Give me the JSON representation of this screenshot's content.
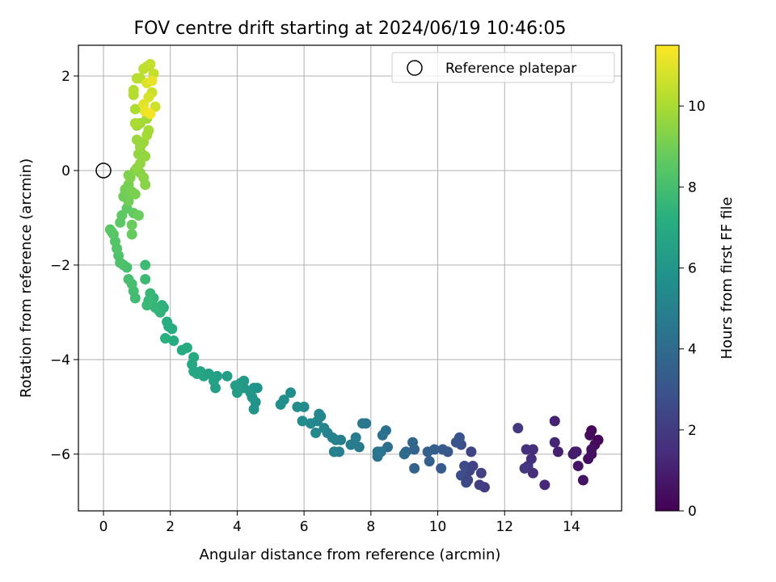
{
  "chart_data": {
    "type": "scatter",
    "title": "FOV centre drift starting at 2024/06/19 10:46:05",
    "xlabel": "Angular distance from reference (arcmin)",
    "ylabel": "Rotation from reference (arcmin)",
    "xlim": [
      -0.75,
      15.5
    ],
    "ylim": [
      -7.2,
      2.65
    ],
    "xticks": [
      0,
      2,
      4,
      6,
      8,
      10,
      12,
      14
    ],
    "yticks": [
      -6,
      -4,
      -2,
      0,
      2
    ],
    "grid": true,
    "legend": {
      "position": "top-right",
      "entries": [
        {
          "label": "Reference platepar",
          "marker": "open-circle"
        }
      ]
    },
    "reference_point": {
      "x": 0,
      "y": 0
    },
    "colorbar": {
      "label": "Hours from first FF file",
      "colormap": "viridis",
      "range": [
        0,
        11.5
      ],
      "ticks": [
        0,
        2,
        4,
        6,
        8,
        10
      ]
    },
    "points": [
      [
        14.8,
        -5.7,
        0.1
      ],
      [
        14.6,
        -5.5,
        0.2
      ],
      [
        14.7,
        -5.8,
        0.3
      ],
      [
        14.55,
        -5.6,
        0.35
      ],
      [
        14.5,
        -6.1,
        0.4
      ],
      [
        14.6,
        -6.0,
        0.5
      ],
      [
        14.35,
        -6.55,
        0.6
      ],
      [
        14.2,
        -6.25,
        0.7
      ],
      [
        14.1,
        -5.95,
        0.8
      ],
      [
        14.05,
        -6.0,
        0.85
      ],
      [
        14.15,
        -5.95,
        0.9
      ],
      [
        14.6,
        -5.9,
        0.5
      ],
      [
        13.6,
        -5.95,
        1.0
      ],
      [
        13.5,
        -5.3,
        1.1
      ],
      [
        13.5,
        -5.75,
        1.2
      ],
      [
        13.2,
        -6.65,
        1.3
      ],
      [
        12.85,
        -6.4,
        1.4
      ],
      [
        12.85,
        -5.9,
        1.5
      ],
      [
        12.65,
        -5.9,
        1.6
      ],
      [
        12.7,
        -6.25,
        1.7
      ],
      [
        12.6,
        -6.3,
        1.8
      ],
      [
        12.4,
        -5.45,
        1.85
      ],
      [
        12.8,
        -6.1,
        1.5
      ],
      [
        11.4,
        -6.7,
        2.0
      ],
      [
        11.25,
        -6.65,
        2.1
      ],
      [
        11.3,
        -6.4,
        2.2
      ],
      [
        11.0,
        -5.95,
        2.3
      ],
      [
        10.95,
        -6.35,
        2.4
      ],
      [
        10.85,
        -6.6,
        2.5
      ],
      [
        10.8,
        -6.25,
        2.6
      ],
      [
        10.7,
        -6.45,
        2.7
      ],
      [
        10.7,
        -5.8,
        2.8
      ],
      [
        10.65,
        -5.65,
        2.9
      ],
      [
        10.55,
        -5.75,
        3.0
      ],
      [
        10.9,
        -6.55,
        2.5
      ],
      [
        11.05,
        -6.25,
        2.3
      ],
      [
        10.3,
        -5.95,
        3.1
      ],
      [
        10.15,
        -5.9,
        3.2
      ],
      [
        10.1,
        -6.3,
        3.3
      ],
      [
        9.9,
        -5.9,
        3.4
      ],
      [
        9.75,
        -6.15,
        3.5
      ],
      [
        9.7,
        -5.95,
        3.55
      ],
      [
        9.3,
        -6.3,
        3.6
      ],
      [
        9.3,
        -5.9,
        3.7
      ],
      [
        9.25,
        -5.75,
        3.8
      ],
      [
        9.05,
        -5.95,
        3.9
      ],
      [
        9.0,
        -6.0,
        4.0
      ],
      [
        8.5,
        -5.85,
        4.1
      ],
      [
        8.45,
        -5.5,
        4.2
      ],
      [
        8.35,
        -5.6,
        4.3
      ],
      [
        8.3,
        -5.95,
        4.35
      ],
      [
        8.2,
        -6.05,
        4.4
      ],
      [
        8.2,
        -5.95,
        4.45
      ],
      [
        7.85,
        -5.35,
        4.5
      ],
      [
        7.75,
        -5.35,
        4.6
      ],
      [
        7.65,
        -5.85,
        4.7
      ],
      [
        7.55,
        -5.65,
        4.75
      ],
      [
        7.4,
        -5.8,
        4.8
      ],
      [
        7.1,
        -5.7,
        4.85
      ],
      [
        7.05,
        -5.95,
        4.9
      ],
      [
        6.95,
        -5.7,
        4.95
      ],
      [
        6.9,
        -5.95,
        5.0
      ],
      [
        6.85,
        -5.65,
        5.05
      ],
      [
        6.7,
        -5.55,
        5.1
      ],
      [
        6.6,
        -5.45,
        5.15
      ],
      [
        6.5,
        -5.2,
        5.2
      ],
      [
        6.45,
        -5.15,
        5.25
      ],
      [
        6.4,
        -5.3,
        5.3
      ],
      [
        6.35,
        -5.55,
        5.35
      ],
      [
        6.2,
        -5.35,
        5.4
      ],
      [
        6.0,
        -5.0,
        5.45
      ],
      [
        5.95,
        -5.3,
        5.5
      ],
      [
        5.8,
        -5.0,
        5.55
      ],
      [
        5.6,
        -4.7,
        5.6
      ],
      [
        5.4,
        -4.85,
        5.65
      ],
      [
        5.3,
        -4.95,
        5.7
      ],
      [
        4.6,
        -4.6,
        5.8
      ],
      [
        4.5,
        -4.6,
        5.85
      ],
      [
        4.55,
        -4.9,
        5.9
      ],
      [
        4.5,
        -5.05,
        5.95
      ],
      [
        4.45,
        -4.8,
        6.0
      ],
      [
        4.4,
        -4.7,
        6.05
      ],
      [
        4.2,
        -4.6,
        6.1
      ],
      [
        4.2,
        -4.45,
        6.15
      ],
      [
        4.1,
        -4.5,
        6.2
      ],
      [
        4.0,
        -4.6,
        6.25
      ],
      [
        3.95,
        -4.55,
        6.3
      ],
      [
        4.0,
        -4.7,
        6.35
      ],
      [
        3.7,
        -4.35,
        6.4
      ],
      [
        3.4,
        -4.35,
        6.45
      ],
      [
        3.35,
        -4.6,
        6.5
      ],
      [
        3.3,
        -4.45,
        6.55
      ],
      [
        3.15,
        -4.3,
        6.6
      ],
      [
        3.0,
        -4.35,
        6.65
      ],
      [
        2.9,
        -4.25,
        6.7
      ],
      [
        2.8,
        -4.3,
        6.75
      ],
      [
        2.7,
        -4.25,
        6.8
      ],
      [
        2.65,
        -4.1,
        6.85
      ],
      [
        2.7,
        -3.95,
        6.9
      ],
      [
        2.5,
        -3.75,
        6.95
      ],
      [
        2.35,
        -3.8,
        7.0
      ],
      [
        2.1,
        -3.6,
        7.05
      ],
      [
        2.05,
        -3.35,
        7.1
      ],
      [
        1.95,
        -3.3,
        7.15
      ],
      [
        1.9,
        -3.2,
        7.2
      ],
      [
        1.85,
        -3.55,
        7.25
      ],
      [
        1.8,
        -2.9,
        7.3
      ],
      [
        1.75,
        -2.85,
        7.35
      ],
      [
        1.7,
        -3.0,
        7.4
      ],
      [
        1.65,
        -2.95,
        7.45
      ],
      [
        1.55,
        -2.9,
        7.5
      ],
      [
        1.5,
        -2.7,
        7.55
      ],
      [
        1.4,
        -2.6,
        7.6
      ],
      [
        1.35,
        -2.75,
        7.65
      ],
      [
        1.3,
        -2.85,
        7.7
      ],
      [
        1.25,
        -2.3,
        7.75
      ],
      [
        1.25,
        -2.0,
        7.8
      ],
      [
        0.95,
        -2.7,
        7.9
      ],
      [
        0.9,
        -2.55,
        7.95
      ],
      [
        0.85,
        -2.4,
        8.0
      ],
      [
        0.75,
        -2.3,
        8.05
      ],
      [
        0.7,
        -2.05,
        8.1
      ],
      [
        0.6,
        -2.0,
        8.15
      ],
      [
        0.5,
        -1.95,
        8.2
      ],
      [
        0.45,
        -1.8,
        8.25
      ],
      [
        0.4,
        -1.65,
        8.3
      ],
      [
        0.35,
        -1.5,
        8.35
      ],
      [
        0.3,
        -1.35,
        8.4
      ],
      [
        0.25,
        -1.3,
        8.45
      ],
      [
        0.2,
        -1.25,
        8.5
      ],
      [
        0.5,
        -1.1,
        8.55
      ],
      [
        0.55,
        -0.95,
        8.6
      ],
      [
        0.7,
        -0.8,
        8.65
      ],
      [
        0.9,
        -0.9,
        8.7
      ],
      [
        0.85,
        -1.35,
        8.75
      ],
      [
        0.85,
        -1.15,
        8.8
      ],
      [
        1.05,
        -0.95,
        8.85
      ],
      [
        0.6,
        -0.55,
        8.9
      ],
      [
        0.75,
        -0.65,
        8.95
      ],
      [
        0.65,
        -0.4,
        9.0
      ],
      [
        0.75,
        -0.3,
        9.05
      ],
      [
        0.85,
        -0.45,
        9.1
      ],
      [
        0.95,
        -0.5,
        9.15
      ],
      [
        0.8,
        -0.15,
        9.2
      ],
      [
        0.75,
        -0.1,
        9.25
      ],
      [
        0.95,
        0.0,
        9.3
      ],
      [
        1.1,
        -0.05,
        9.35
      ],
      [
        1.25,
        -0.3,
        9.4
      ],
      [
        1.2,
        -0.15,
        9.45
      ],
      [
        1.0,
        0.05,
        9.5
      ],
      [
        1.1,
        0.15,
        9.55
      ],
      [
        1.05,
        0.35,
        9.6
      ],
      [
        1.25,
        0.3,
        9.65
      ],
      [
        1.1,
        0.5,
        9.7
      ],
      [
        1.0,
        0.65,
        9.75
      ],
      [
        1.0,
        0.95,
        9.8
      ],
      [
        1.1,
        1.0,
        9.85
      ],
      [
        1.3,
        1.1,
        9.9
      ],
      [
        1.35,
        0.85,
        9.95
      ],
      [
        0.95,
        1.0,
        10.0
      ],
      [
        0.95,
        1.3,
        10.05
      ],
      [
        1.2,
        1.3,
        10.1
      ],
      [
        0.9,
        1.6,
        10.15
      ],
      [
        0.9,
        1.7,
        10.2
      ],
      [
        1.0,
        1.95,
        10.25
      ],
      [
        1.1,
        1.95,
        10.3
      ],
      [
        1.2,
        2.15,
        10.35
      ],
      [
        1.3,
        2.2,
        10.4
      ],
      [
        1.4,
        2.25,
        10.45
      ],
      [
        1.5,
        2.05,
        10.5
      ],
      [
        1.45,
        1.65,
        10.6
      ],
      [
        1.55,
        1.35,
        10.7
      ],
      [
        1.35,
        1.55,
        10.8
      ],
      [
        1.3,
        1.85,
        10.9
      ],
      [
        1.2,
        1.4,
        11.0
      ],
      [
        1.45,
        1.9,
        11.1
      ],
      [
        1.25,
        1.25,
        11.2
      ],
      [
        1.4,
        1.2,
        11.3
      ],
      [
        1.15,
        0.35,
        9.6
      ],
      [
        1.2,
        0.6,
        9.7
      ],
      [
        1.3,
        0.75,
        9.9
      ]
    ]
  }
}
